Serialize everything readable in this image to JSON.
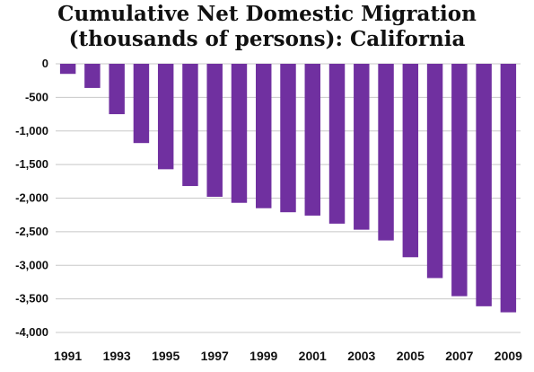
{
  "chart_data": {
    "type": "bar",
    "title_line1": "Cumulative Net Domestic Migration",
    "title_line2": "(thousands of persons): California",
    "categories": [
      "1991",
      "1992",
      "1993",
      "1994",
      "1995",
      "1996",
      "1997",
      "1998",
      "1999",
      "2000",
      "2001",
      "2002",
      "2003",
      "2004",
      "2005",
      "2006",
      "2007",
      "2008",
      "2009"
    ],
    "tick_labels_x": [
      "1991",
      "1993",
      "1995",
      "1997",
      "1999",
      "2001",
      "2003",
      "2005",
      "2007",
      "2009"
    ],
    "values": [
      -150,
      -360,
      -750,
      -1180,
      -1570,
      -1820,
      -1980,
      -2070,
      -2150,
      -2210,
      -2260,
      -2380,
      -2470,
      -2630,
      -2880,
      -3190,
      -3460,
      -3610,
      -3700
    ],
    "ylim": [
      -4000,
      0
    ],
    "yticks": [
      0,
      -500,
      -1000,
      -1500,
      -2000,
      -2500,
      -3000,
      -3500,
      -4000
    ],
    "ytick_labels": [
      "0",
      "-500",
      "-1,000",
      "-1,500",
      "-2,000",
      "-2,500",
      "-3,000",
      "-3,500",
      "-4,000"
    ],
    "grid": true,
    "bar_color": "#7030A0",
    "grid_color": "#c8c8c8"
  }
}
